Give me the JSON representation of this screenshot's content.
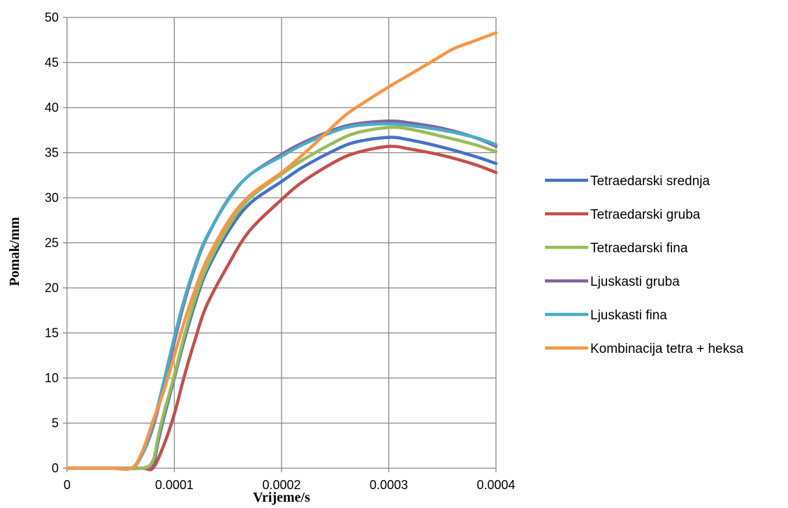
{
  "chart_data": {
    "type": "line",
    "title": "",
    "xlabel": "Vrijeme/s",
    "ylabel": "Pomak/mm",
    "xlim": [
      0,
      0.0004
    ],
    "ylim": [
      0,
      50
    ],
    "x_ticks": [
      "0",
      "0.0001",
      "0.0002",
      "0.0003",
      "0.0004"
    ],
    "y_ticks": [
      "0",
      "5",
      "10",
      "15",
      "20",
      "25",
      "30",
      "35",
      "40",
      "45",
      "50"
    ],
    "grid": "major",
    "legend_position": "right",
    "series": [
      {
        "name": "Tetraedarski srednja",
        "color": "#4472C4",
        "points": [
          [
            0,
            0
          ],
          [
            4e-05,
            0
          ],
          [
            7e-05,
            0
          ],
          [
            8e-05,
            0.4
          ],
          [
            8.5e-05,
            3
          ],
          [
            9e-05,
            5.5
          ],
          [
            0.0001,
            10
          ],
          [
            0.00011,
            14.5
          ],
          [
            0.00012,
            18.5
          ],
          [
            0.00013,
            21.8
          ],
          [
            0.00015,
            26.2
          ],
          [
            0.00017,
            29.3
          ],
          [
            0.0002,
            31.8
          ],
          [
            0.00022,
            33.4
          ],
          [
            0.00025,
            35.3
          ],
          [
            0.00027,
            36.2
          ],
          [
            0.0003,
            36.7
          ],
          [
            0.00032,
            36.4
          ],
          [
            0.00035,
            35.6
          ],
          [
            0.00038,
            34.6
          ],
          [
            0.0004,
            33.8
          ]
        ]
      },
      {
        "name": "Tetraedarski gruba",
        "color": "#C0504D",
        "points": [
          [
            0,
            0
          ],
          [
            4e-05,
            0
          ],
          [
            7e-05,
            0
          ],
          [
            8e-05,
            0
          ],
          [
            9e-05,
            2.5
          ],
          [
            0.0001,
            6
          ],
          [
            0.00011,
            10.5
          ],
          [
            0.00012,
            14.5
          ],
          [
            0.00013,
            18
          ],
          [
            0.00015,
            22.5
          ],
          [
            0.00017,
            26.3
          ],
          [
            0.0002,
            29.8
          ],
          [
            0.00022,
            31.8
          ],
          [
            0.00025,
            34
          ],
          [
            0.00027,
            35
          ],
          [
            0.0003,
            35.7
          ],
          [
            0.00032,
            35.4
          ],
          [
            0.00035,
            34.7
          ],
          [
            0.00038,
            33.7
          ],
          [
            0.0004,
            32.8
          ]
        ]
      },
      {
        "name": "Tetraedarski fina",
        "color": "#9BBB59",
        "points": [
          [
            0,
            0
          ],
          [
            4e-05,
            0
          ],
          [
            7e-05,
            0
          ],
          [
            8e-05,
            0.8
          ],
          [
            8.5e-05,
            3.5
          ],
          [
            9e-05,
            6
          ],
          [
            0.0001,
            10.3
          ],
          [
            0.00011,
            15
          ],
          [
            0.00012,
            19
          ],
          [
            0.00013,
            22.2
          ],
          [
            0.00015,
            26.7
          ],
          [
            0.00017,
            29.9
          ],
          [
            0.0002,
            32.6
          ],
          [
            0.00022,
            34.2
          ],
          [
            0.00025,
            36.2
          ],
          [
            0.00027,
            37.2
          ],
          [
            0.0003,
            37.8
          ],
          [
            0.00032,
            37.6
          ],
          [
            0.00035,
            36.8
          ],
          [
            0.00038,
            35.9
          ],
          [
            0.0004,
            35.1
          ]
        ]
      },
      {
        "name": "Ljuskasti gruba",
        "color": "#8064A2",
        "points": [
          [
            0,
            0
          ],
          [
            4e-05,
            0
          ],
          [
            6e-05,
            0
          ],
          [
            7e-05,
            1.5
          ],
          [
            8e-05,
            4.5
          ],
          [
            9e-05,
            9
          ],
          [
            0.0001,
            14
          ],
          [
            0.00011,
            18.7
          ],
          [
            0.00012,
            22.5
          ],
          [
            0.00013,
            25.5
          ],
          [
            0.00015,
            29.8
          ],
          [
            0.00017,
            32.5
          ],
          [
            0.0002,
            34.8
          ],
          [
            0.00022,
            36.1
          ],
          [
            0.00025,
            37.6
          ],
          [
            0.00027,
            38.2
          ],
          [
            0.0003,
            38.5
          ],
          [
            0.00032,
            38.3
          ],
          [
            0.00035,
            37.7
          ],
          [
            0.00038,
            36.7
          ],
          [
            0.0004,
            35.7
          ]
        ]
      },
      {
        "name": "Ljuskasti fina",
        "color": "#4BACC6",
        "points": [
          [
            0,
            0
          ],
          [
            4e-05,
            0
          ],
          [
            6e-05,
            0
          ],
          [
            7e-05,
            1.5
          ],
          [
            8e-05,
            4.8
          ],
          [
            9e-05,
            9.5
          ],
          [
            0.0001,
            14.5
          ],
          [
            0.00011,
            19
          ],
          [
            0.00012,
            22.7
          ],
          [
            0.00013,
            25.6
          ],
          [
            0.00015,
            29.7
          ],
          [
            0.00017,
            32.5
          ],
          [
            0.0002,
            34.6
          ],
          [
            0.00022,
            35.9
          ],
          [
            0.00025,
            37.4
          ],
          [
            0.00027,
            38
          ],
          [
            0.0003,
            38.2
          ],
          [
            0.00032,
            38
          ],
          [
            0.00035,
            37.5
          ],
          [
            0.00038,
            36.7
          ],
          [
            0.0004,
            35.9
          ]
        ]
      },
      {
        "name": "Kombinacija tetra + heksa",
        "color": "#F79646",
        "points": [
          [
            0,
            0
          ],
          [
            4e-05,
            0
          ],
          [
            6e-05,
            0
          ],
          [
            7e-05,
            1.8
          ],
          [
            8e-05,
            5.2
          ],
          [
            9e-05,
            8.5
          ],
          [
            0.0001,
            12.5
          ],
          [
            0.00011,
            16.5
          ],
          [
            0.00012,
            20
          ],
          [
            0.00013,
            23
          ],
          [
            0.00015,
            27.3
          ],
          [
            0.00017,
            30.2
          ],
          [
            0.0002,
            32.8
          ],
          [
            0.00022,
            34.8
          ],
          [
            0.00024,
            37
          ],
          [
            0.00026,
            39.2
          ],
          [
            0.00028,
            40.8
          ],
          [
            0.0003,
            42.3
          ],
          [
            0.00032,
            43.7
          ],
          [
            0.00034,
            45.1
          ],
          [
            0.00036,
            46.5
          ],
          [
            0.00038,
            47.4
          ],
          [
            0.0004,
            48.3
          ]
        ]
      }
    ]
  }
}
